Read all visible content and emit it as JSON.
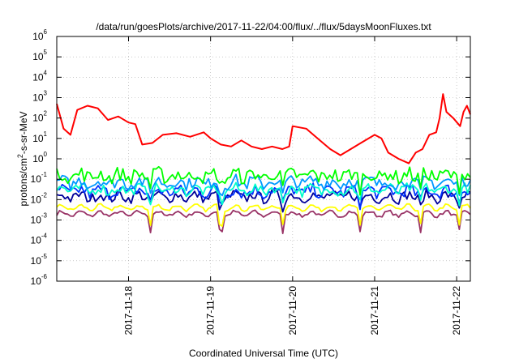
{
  "chart_data": {
    "type": "line",
    "title": "/data/run/goesPlots/archive/2017-11-22/04:00/flux/../flux/5daysMoonFluxes.txt",
    "xlabel": "Coordinated Universal Time (UTC)",
    "ylabel": "protons/cm2-s-sr-MeV",
    "y_scale": "log",
    "ylim": [
      1e-06,
      1000000.0
    ],
    "y_ticks": [
      {
        "value": 1e-06,
        "base": "10",
        "exp": "-6"
      },
      {
        "value": 1e-05,
        "base": "10",
        "exp": "-5"
      },
      {
        "value": 0.0001,
        "base": "10",
        "exp": "-4"
      },
      {
        "value": 0.001,
        "base": "10",
        "exp": "-3"
      },
      {
        "value": 0.01,
        "base": "10",
        "exp": "-2"
      },
      {
        "value": 0.1,
        "base": "10",
        "exp": "-1"
      },
      {
        "value": 1,
        "base": "10",
        "exp": "0"
      },
      {
        "value": 10,
        "base": "10",
        "exp": "1"
      },
      {
        "value": 100,
        "base": "10",
        "exp": "2"
      },
      {
        "value": 1000,
        "base": "10",
        "exp": "3"
      },
      {
        "value": 10000,
        "base": "10",
        "exp": "4"
      },
      {
        "value": 100000,
        "base": "10",
        "exp": "5"
      },
      {
        "value": 1000000,
        "base": "10",
        "exp": "6"
      }
    ],
    "xlim": [
      "2017-11-17 03:00",
      "2017-11-22 04:00"
    ],
    "x_ticks": [
      "2017-11-18",
      "2017-11-19",
      "2017-11-20",
      "2017-11-21",
      "2017-11-22"
    ],
    "grid": true,
    "legend": "none",
    "series": [
      {
        "color": "#ff0000",
        "points": [
          [
            "2017-11-17 03:00",
            500
          ],
          [
            "2017-11-17 05:00",
            30
          ],
          [
            "2017-11-17 07:00",
            15
          ],
          [
            "2017-11-17 09:00",
            250
          ],
          [
            "2017-11-17 12:00",
            400
          ],
          [
            "2017-11-17 15:00",
            300
          ],
          [
            "2017-11-17 18:00",
            80
          ],
          [
            "2017-11-17 21:00",
            120
          ],
          [
            "2017-11-18 00:00",
            60
          ],
          [
            "2017-11-18 02:00",
            50
          ],
          [
            "2017-11-18 04:00",
            5
          ],
          [
            "2017-11-18 07:00",
            6
          ],
          [
            "2017-11-18 10:00",
            15
          ],
          [
            "2017-11-18 14:00",
            18
          ],
          [
            "2017-11-18 18:00",
            12
          ],
          [
            "2017-11-18 22:00",
            20
          ],
          [
            "2017-11-19 00:00",
            10
          ],
          [
            "2017-11-19 03:00",
            5
          ],
          [
            "2017-11-19 06:00",
            4
          ],
          [
            "2017-11-19 09:00",
            8
          ],
          [
            "2017-11-19 12:00",
            4
          ],
          [
            "2017-11-19 15:00",
            3
          ],
          [
            "2017-11-19 18:00",
            4
          ],
          [
            "2017-11-19 21:00",
            3
          ],
          [
            "2017-11-19 23:00",
            4
          ],
          [
            "2017-11-20 00:00",
            40
          ],
          [
            "2017-11-20 04:00",
            30
          ],
          [
            "2017-11-20 08:00",
            8
          ],
          [
            "2017-11-20 11:00",
            3
          ],
          [
            "2017-11-20 14:00",
            1.5
          ],
          [
            "2017-11-20 17:00",
            3
          ],
          [
            "2017-11-20 20:00",
            6
          ],
          [
            "2017-11-21 00:00",
            15
          ],
          [
            "2017-11-21 02:00",
            10
          ],
          [
            "2017-11-21 04:00",
            2
          ],
          [
            "2017-11-21 07:00",
            1
          ],
          [
            "2017-11-21 10:00",
            0.6
          ],
          [
            "2017-11-21 12:00",
            2
          ],
          [
            "2017-11-21 14:00",
            3
          ],
          [
            "2017-11-21 16:00",
            15
          ],
          [
            "2017-11-21 18:00",
            20
          ],
          [
            "2017-11-21 19:00",
            100
          ],
          [
            "2017-11-21 20:00",
            1500
          ],
          [
            "2017-11-21 21:00",
            200
          ],
          [
            "2017-11-21 23:00",
            100
          ],
          [
            "2017-11-22 01:00",
            40
          ],
          [
            "2017-11-22 02:00",
            200
          ],
          [
            "2017-11-22 03:00",
            400
          ],
          [
            "2017-11-22 04:00",
            150
          ]
        ]
      },
      {
        "color": "#00ff00",
        "level": 0.15,
        "spread": 0.35
      },
      {
        "color": "#0099ff",
        "level": 0.07,
        "spread": 0.3
      },
      {
        "color": "#00ffcc",
        "level": 0.03,
        "spread": 0.25
      },
      {
        "color": "#0033ff",
        "level": 0.025,
        "spread": 0.3
      },
      {
        "color": "#000099",
        "level": 0.014,
        "spread": 0.25
      },
      {
        "color": "#ffff00",
        "level": 0.004,
        "spread": 0.08
      },
      {
        "color": "#993366",
        "level": 0.002,
        "spread": 0.08
      }
    ]
  }
}
